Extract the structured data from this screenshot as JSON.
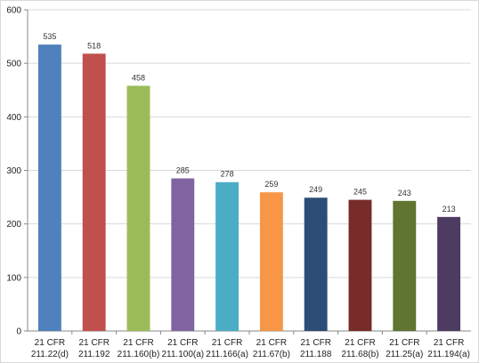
{
  "chart_data": {
    "type": "bar",
    "title": "",
    "xlabel": "",
    "ylabel": "",
    "ylim": [
      0,
      600
    ],
    "yticks": [
      0,
      100,
      200,
      300,
      400,
      500,
      600
    ],
    "grid": "horizontal",
    "legend": "none",
    "categories": [
      [
        "21 CFR",
        "211.22(d)"
      ],
      [
        "21 CFR",
        "211.192"
      ],
      [
        "21 CFR",
        "211.160(b)"
      ],
      [
        "21 CFR",
        "211.100(a)"
      ],
      [
        "21 CFR",
        "211.166(a)"
      ],
      [
        "21 CFR",
        "211.67(b)"
      ],
      [
        "21 CFR",
        "211.188"
      ],
      [
        "21 CFR",
        "211.68(b)"
      ],
      [
        "21 CFR",
        "211.25(a)"
      ],
      [
        "21 CFR",
        "211.194(a)"
      ]
    ],
    "values": [
      535,
      518,
      458,
      285,
      278,
      259,
      249,
      245,
      243,
      213
    ],
    "data_labels": [
      "535",
      "518",
      "458",
      "285",
      "278",
      "259",
      "249",
      "245",
      "243",
      "213"
    ],
    "colors": [
      "#4F81BD",
      "#C0504D",
      "#9BBB59",
      "#8064A2",
      "#4BACC6",
      "#F79646",
      "#2C4D75",
      "#772C2A",
      "#5F7530",
      "#4D3B62"
    ],
    "gridline_color": "#d9d9d9",
    "axis_color": "#888888"
  }
}
